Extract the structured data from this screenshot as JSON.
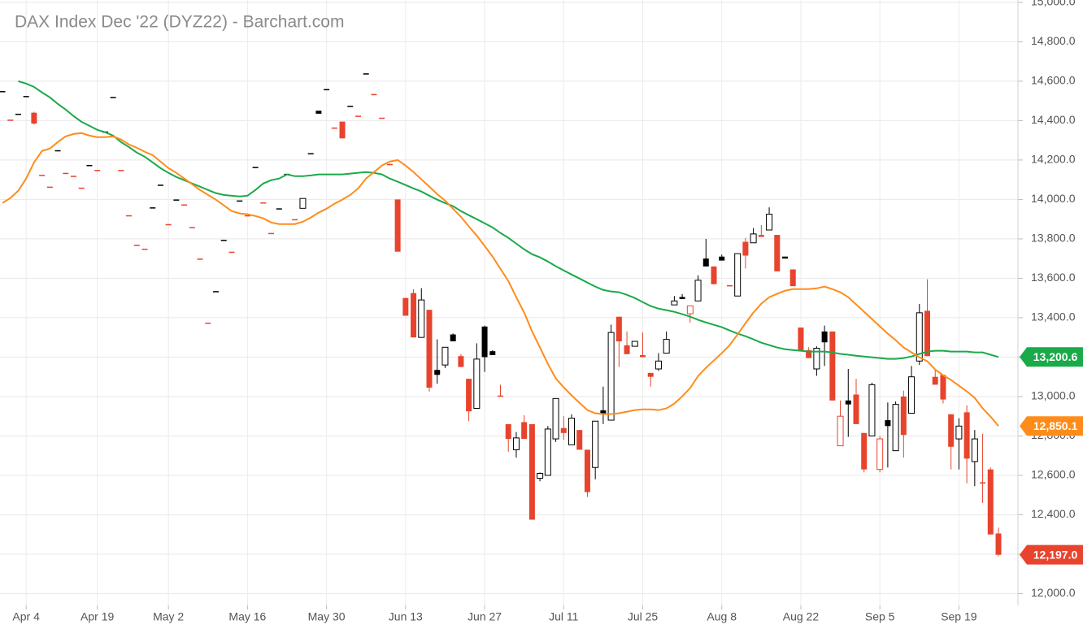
{
  "chart_data": {
    "type": "candlestick",
    "title": "DAX Index Dec '22 (DYZ22) - Barchart.com",
    "categories": [
      null,
      null,
      null,
      "Apr 4",
      null,
      null,
      null,
      null,
      null,
      null,
      null,
      null,
      "Apr 19",
      null,
      null,
      null,
      null,
      null,
      null,
      null,
      null,
      "May 2",
      null,
      null,
      null,
      null,
      null,
      null,
      null,
      null,
      null,
      "May 16",
      null,
      null,
      null,
      null,
      null,
      null,
      null,
      null,
      null,
      "May 30",
      null,
      null,
      null,
      null,
      null,
      null,
      null,
      null,
      null,
      "Jun 13",
      null,
      null,
      null,
      null,
      null,
      null,
      null,
      null,
      null,
      "Jun 27",
      null,
      null,
      null,
      null,
      null,
      null,
      null,
      null,
      null,
      "Jul 11",
      null,
      null,
      null,
      null,
      null,
      null,
      null,
      null,
      null,
      "Jul 25",
      null,
      null,
      null,
      null,
      null,
      null,
      null,
      null,
      null,
      "Aug 8",
      null,
      null,
      null,
      null,
      null,
      null,
      null,
      null,
      null,
      "Aug 22",
      null,
      null,
      null,
      null,
      null,
      null,
      null,
      null,
      null,
      "Sep 5",
      null,
      null,
      null,
      null,
      null,
      null,
      null,
      null,
      null,
      "Sep 19",
      null,
      null,
      null,
      null,
      null
    ],
    "open": [
      14550,
      14405,
      14435,
      14525,
      14440,
      14125,
      14065,
      14250,
      14135,
      14120,
      14060,
      14175,
      14150,
      14345,
      14520,
      14150,
      13920,
      13770,
      13750,
      13960,
      14075,
      13875,
      14000,
      13975,
      13860,
      13700,
      13375,
      13535,
      13795,
      13735,
      13995,
      13920,
      14165,
      13985,
      13830,
      13955,
      14130,
      13900,
      13955,
      14235,
      14450,
      14560,
      14365,
      14395,
      14475,
      14425,
      14640,
      14535,
      14415,
      14180,
      14000,
      13500,
      13525,
      13300,
      13440,
      13135,
      13160,
      13315,
      13205,
      13090,
      12940,
      13355,
      13230,
      13005,
      12860,
      12730,
      12870,
      12860,
      12585,
      12600,
      12785,
      12840,
      12755,
      12830,
      12730,
      12640,
      12930,
      12880,
      13405,
      13260,
      13255,
      13210,
      13120,
      13140,
      13220,
      13465,
      13505,
      13420,
      13485,
      13700,
      13660,
      13710,
      13565,
      13510,
      13785,
      13780,
      13820,
      13845,
      13820,
      13710,
      13645,
      13350,
      13235,
      13140,
      13330,
      13330,
      12750,
      12980,
      13010,
      12815,
      12800,
      12630,
      12880,
      12725,
      13000,
      12915,
      13180,
      13435,
      13100,
      13110,
      12910,
      12785,
      12920,
      12670,
      12565,
      12630,
      12305
    ],
    "high": [
      14550,
      14405,
      14435,
      14525,
      14445,
      14125,
      14065,
      14250,
      14135,
      14120,
      14060,
      14175,
      14150,
      14345,
      14520,
      14150,
      13920,
      13770,
      13750,
      13960,
      14075,
      13875,
      14000,
      13975,
      13860,
      13700,
      13375,
      13535,
      13795,
      13735,
      13995,
      13920,
      14165,
      13985,
      13830,
      13955,
      14130,
      13900,
      14005,
      14235,
      14450,
      14560,
      14365,
      14395,
      14475,
      14425,
      14640,
      14535,
      14415,
      14180,
      14000,
      13500,
      13545,
      13550,
      13440,
      13290,
      13250,
      13320,
      13215,
      13090,
      13270,
      13360,
      13235,
      13060,
      12860,
      12820,
      12905,
      12860,
      12615,
      12850,
      12990,
      12900,
      12910,
      12830,
      12730,
      12875,
      13050,
      13365,
      13405,
      13330,
      13280,
      13325,
      13120,
      13220,
      13330,
      13510,
      13520,
      13460,
      13615,
      13800,
      13660,
      13720,
      13565,
      13725,
      13805,
      13855,
      13870,
      13960,
      13820,
      13710,
      13645,
      13350,
      13250,
      13255,
      13360,
      13330,
      12980,
      13140,
      13090,
      12815,
      13070,
      12800,
      12970,
      12975,
      13030,
      13155,
      13470,
      13595,
      13140,
      13110,
      12910,
      12890,
      12955,
      12830,
      12810,
      12640,
      12335
    ],
    "low": [
      14550,
      14405,
      14435,
      14525,
      14380,
      14125,
      14065,
      14250,
      14135,
      14120,
      14060,
      14175,
      14150,
      14345,
      14520,
      14150,
      13920,
      13770,
      13750,
      13960,
      14075,
      13875,
      14000,
      13975,
      13860,
      13700,
      13375,
      13535,
      13795,
      13735,
      13995,
      13920,
      14165,
      13985,
      13830,
      13955,
      14130,
      13900,
      13955,
      14235,
      14435,
      14560,
      14365,
      14310,
      14475,
      14425,
      14640,
      14535,
      14415,
      14180,
      13735,
      13410,
      13300,
      13300,
      13025,
      13065,
      13145,
      13280,
      13150,
      12875,
      12940,
      13125,
      13210,
      13000,
      12720,
      12690,
      12785,
      12375,
      12570,
      12600,
      12770,
      12780,
      12755,
      12730,
      12490,
      12580,
      12860,
      12880,
      13150,
      13215,
      13255,
      13200,
      13050,
      13130,
      13220,
      13465,
      13495,
      13375,
      13485,
      13660,
      13570,
      13690,
      13560,
      13510,
      13650,
      13780,
      13810,
      13845,
      13635,
      13700,
      13560,
      13230,
      13195,
      13105,
      13155,
      12980,
      12750,
      12795,
      12860,
      12615,
      12800,
      12615,
      12640,
      12725,
      12690,
      12915,
      13160,
      13205,
      13060,
      12965,
      12630,
      12630,
      12560,
      12545,
      12460,
      12300,
      12190
    ],
    "close": [
      14550,
      14405,
      14435,
      14525,
      14385,
      14125,
      14065,
      14250,
      14135,
      14120,
      14060,
      14175,
      14150,
      14345,
      14520,
      14150,
      13920,
      13770,
      13750,
      13960,
      14075,
      13875,
      14000,
      13975,
      13860,
      13700,
      13375,
      13535,
      13795,
      13735,
      13995,
      13920,
      14165,
      13985,
      13830,
      13955,
      14130,
      13900,
      14005,
      14235,
      14435,
      14560,
      14365,
      14310,
      14475,
      14425,
      14640,
      14535,
      14415,
      14180,
      13735,
      13410,
      13300,
      13490,
      13045,
      13110,
      13250,
      13280,
      13150,
      12925,
      13190,
      13200,
      13210,
      13000,
      12785,
      12790,
      12785,
      12375,
      12610,
      12835,
      12990,
      12815,
      12890,
      12730,
      12515,
      12875,
      12910,
      13325,
      13280,
      13215,
      13280,
      13200,
      13100,
      13180,
      13290,
      13485,
      13495,
      13460,
      13590,
      13660,
      13570,
      13690,
      13560,
      13725,
      13715,
      13825,
      13810,
      13925,
      13635,
      13700,
      13560,
      13230,
      13195,
      13245,
      13275,
      12980,
      12900,
      12960,
      12860,
      12630,
      13060,
      12785,
      12850,
      12960,
      12805,
      13100,
      13425,
      13205,
      13060,
      12985,
      12745,
      12850,
      12685,
      12785,
      12560,
      12300,
      12197
    ],
    "close_label": "12,197.0",
    "up_color": "#000000",
    "down_color": "#e8432d",
    "overlays": [
      {
        "color": "#1aaa4a",
        "last_label": "13,200.6",
        "values": [
          null,
          null,
          14600,
          14588,
          14571,
          14543,
          14518,
          14485,
          14456,
          14423,
          14394,
          14374,
          14353,
          14341,
          14324,
          14291,
          14266,
          14238,
          14217,
          14188,
          14159,
          14135,
          14114,
          14098,
          14081,
          14065,
          14048,
          14032,
          14023,
          14019,
          14015,
          14019,
          14048,
          14081,
          14098,
          14106,
          14127,
          14118,
          14118,
          14122,
          14127,
          14127,
          14127,
          14127,
          14131,
          14135,
          14139,
          14135,
          14127,
          14106,
          14090,
          14073,
          14056,
          14040,
          14019,
          13999,
          13982,
          13966,
          13941,
          13920,
          13900,
          13879,
          13858,
          13830,
          13805,
          13776,
          13747,
          13722,
          13706,
          13685,
          13661,
          13640,
          13619,
          13599,
          13578,
          13558,
          13541,
          13533,
          13529,
          13516,
          13500,
          13479,
          13459,
          13446,
          13438,
          13430,
          13418,
          13405,
          13389,
          13376,
          13364,
          13352,
          13335,
          13319,
          13306,
          13290,
          13273,
          13261,
          13249,
          13240,
          13236,
          13232,
          13228,
          13228,
          13228,
          13224,
          13216,
          13212,
          13207,
          13203,
          13199,
          13195,
          13191,
          13191,
          13195,
          13203,
          13216,
          13228,
          13232,
          13232,
          13228,
          13228,
          13228,
          13224,
          13224,
          13212,
          13200.6
        ]
      },
      {
        "color": "#ff8c1a",
        "last_label": "12,850.1",
        "values": [
          13982,
          14007,
          14044,
          14106,
          14188,
          14246,
          14258,
          14291,
          14320,
          14332,
          14337,
          14324,
          14316,
          14316,
          14320,
          14304,
          14279,
          14262,
          14242,
          14225,
          14192,
          14159,
          14135,
          14106,
          14077,
          14048,
          14023,
          13999,
          13970,
          13941,
          13929,
          13925,
          13916,
          13904,
          13883,
          13875,
          13875,
          13875,
          13887,
          13908,
          13933,
          13953,
          13978,
          13999,
          14023,
          14056,
          14106,
          14139,
          14172,
          14192,
          14200,
          14172,
          14139,
          14102,
          14065,
          14027,
          13994,
          13953,
          13912,
          13863,
          13817,
          13764,
          13710,
          13648,
          13586,
          13504,
          13426,
          13331,
          13249,
          13166,
          13092,
          13047,
          13006,
          12968,
          12931,
          12915,
          12911,
          12911,
          12915,
          12923,
          12931,
          12935,
          12935,
          12931,
          12940,
          12964,
          13001,
          13043,
          13104,
          13146,
          13183,
          13220,
          13261,
          13315,
          13372,
          13426,
          13471,
          13504,
          13521,
          13537,
          13545,
          13545,
          13545,
          13549,
          13558,
          13545,
          13529,
          13504,
          13467,
          13430,
          13393,
          13356,
          13319,
          13286,
          13249,
          13224,
          13199,
          13179,
          13137,
          13108,
          13084,
          13055,
          13026,
          12993,
          12940,
          12898,
          12850.1
        ]
      }
    ],
    "ylim": [
      11940,
      15012
    ],
    "yticks": [
      {
        "value": 12000,
        "label": "12,000.0"
      },
      {
        "value": 12200,
        "label": "12,200.0"
      },
      {
        "value": 12400,
        "label": "12,400.0"
      },
      {
        "value": 12600,
        "label": "12,600.0"
      },
      {
        "value": 12800,
        "label": "12,800.0"
      },
      {
        "value": 13000,
        "label": "13,000.0"
      },
      {
        "value": 13200,
        "label": "13,200.0"
      },
      {
        "value": 13400,
        "label": "13,400.0"
      },
      {
        "value": 13600,
        "label": "13,600.0"
      },
      {
        "value": 13800,
        "label": "13,800.0"
      },
      {
        "value": 14000,
        "label": "14,000.0"
      },
      {
        "value": 14200,
        "label": "14,200.0"
      },
      {
        "value": 14400,
        "label": "14,400.0"
      },
      {
        "value": 14600,
        "label": "14,600.0"
      },
      {
        "value": 14800,
        "label": "14,800.0"
      },
      {
        "value": 15000,
        "label": "15,000.0"
      }
    ],
    "grid": true
  }
}
